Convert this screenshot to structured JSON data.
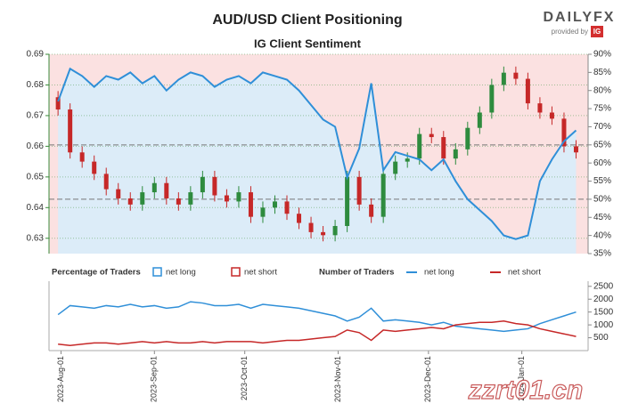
{
  "chart_data": [
    {
      "type": "candlestick",
      "title": "AUD/USD Client Positioning",
      "subtitle": "IG Client Sentiment",
      "logo": {
        "brand": "DAILYFX",
        "provided_by": "provided by",
        "provider": "IG"
      },
      "watermark": "zzrt01.cn",
      "x": [
        "2023-07-31",
        "2023-08-04",
        "2023-08-08",
        "2023-08-12",
        "2023-08-16",
        "2023-08-20",
        "2023-08-24",
        "2023-08-28",
        "2023-09-01",
        "2023-09-05",
        "2023-09-09",
        "2023-09-13",
        "2023-09-17",
        "2023-09-21",
        "2023-09-25",
        "2023-09-29",
        "2023-10-03",
        "2023-10-07",
        "2023-10-11",
        "2023-10-15",
        "2023-10-19",
        "2023-10-23",
        "2023-10-27",
        "2023-10-31",
        "2023-11-04",
        "2023-11-08",
        "2023-11-12",
        "2023-11-16",
        "2023-11-20",
        "2023-11-24",
        "2023-11-28",
        "2023-12-02",
        "2023-12-06",
        "2023-12-10",
        "2023-12-14",
        "2023-12-18",
        "2023-12-22",
        "2023-12-26",
        "2023-12-30",
        "2024-01-03",
        "2024-01-07",
        "2024-01-11",
        "2024-01-15",
        "2024-01-19"
      ],
      "open": [
        0.676,
        0.672,
        0.658,
        0.655,
        0.651,
        0.646,
        0.643,
        0.641,
        0.645,
        0.648,
        0.643,
        0.641,
        0.645,
        0.65,
        0.644,
        0.642,
        0.645,
        0.637,
        0.64,
        0.642,
        0.638,
        0.635,
        0.632,
        0.631,
        0.634,
        0.65,
        0.641,
        0.637,
        0.651,
        0.655,
        0.656,
        0.664,
        0.663,
        0.656,
        0.659,
        0.666,
        0.671,
        0.68,
        0.684,
        0.682,
        0.674,
        0.671,
        0.669,
        0.66
      ],
      "high": [
        0.678,
        0.674,
        0.66,
        0.657,
        0.653,
        0.648,
        0.645,
        0.647,
        0.65,
        0.65,
        0.645,
        0.647,
        0.652,
        0.652,
        0.646,
        0.647,
        0.647,
        0.642,
        0.644,
        0.644,
        0.64,
        0.637,
        0.634,
        0.636,
        0.652,
        0.652,
        0.643,
        0.653,
        0.657,
        0.658,
        0.666,
        0.666,
        0.665,
        0.661,
        0.668,
        0.673,
        0.682,
        0.686,
        0.686,
        0.684,
        0.676,
        0.673,
        0.671,
        0.662
      ],
      "low": [
        0.67,
        0.656,
        0.653,
        0.649,
        0.644,
        0.641,
        0.639,
        0.639,
        0.643,
        0.641,
        0.639,
        0.639,
        0.643,
        0.642,
        0.64,
        0.64,
        0.635,
        0.635,
        0.638,
        0.636,
        0.633,
        0.63,
        0.629,
        0.629,
        0.632,
        0.639,
        0.635,
        0.635,
        0.649,
        0.653,
        0.654,
        0.661,
        0.654,
        0.654,
        0.657,
        0.664,
        0.669,
        0.678,
        0.68,
        0.672,
        0.669,
        0.667,
        0.658,
        0.656
      ],
      "close": [
        0.672,
        0.658,
        0.655,
        0.651,
        0.646,
        0.643,
        0.641,
        0.645,
        0.648,
        0.643,
        0.641,
        0.645,
        0.65,
        0.644,
        0.642,
        0.645,
        0.637,
        0.64,
        0.642,
        0.638,
        0.635,
        0.632,
        0.631,
        0.634,
        0.65,
        0.641,
        0.637,
        0.651,
        0.655,
        0.656,
        0.664,
        0.663,
        0.656,
        0.659,
        0.666,
        0.671,
        0.68,
        0.684,
        0.682,
        0.674,
        0.671,
        0.669,
        0.66,
        0.658
      ],
      "up_color": "#2e8b3e",
      "down_color": "#c62828",
      "xlim": [
        "2023-07-28",
        "2024-01-23"
      ],
      "xticks": [
        {
          "value": "2023-08-01",
          "label": "2023-Aug-01"
        },
        {
          "value": "2023-09-01",
          "label": "2023-Sep-01"
        },
        {
          "value": "2023-10-01",
          "label": "2023-Oct-01"
        },
        {
          "value": "2023-11-01",
          "label": "2023-Nov-01"
        },
        {
          "value": "2023-12-01",
          "label": "2023-Dec-01"
        },
        {
          "value": "2024-01-01",
          "label": "2024-Jan-01"
        }
      ],
      "ylim": [
        0.625,
        0.69
      ],
      "yticks": [
        0.63,
        0.64,
        0.65,
        0.66,
        0.67,
        0.68,
        0.69
      ],
      "series": [
        {
          "name": "net long",
          "color": "#2f8fd8",
          "fill": "#dcecf8",
          "axis": "y2",
          "values": [
            77,
            86,
            84,
            81,
            84,
            83,
            85,
            82,
            84,
            80,
            83,
            85,
            84,
            81,
            83,
            84,
            82,
            85,
            84,
            83,
            80,
            76,
            72,
            70,
            56,
            64,
            82,
            58,
            63,
            62,
            61,
            58,
            61,
            55,
            50,
            47,
            44,
            40,
            39,
            40,
            55,
            61,
            66,
            69
          ]
        }
      ],
      "background": "#fbe1e1",
      "reference_lines": [
        65,
        50
      ],
      "y2lim": [
        35,
        90
      ],
      "y2ticks": [
        {
          "value": 35,
          "label": "35%"
        },
        {
          "value": 40,
          "label": "40%"
        },
        {
          "value": 45,
          "label": "45%"
        },
        {
          "value": 50,
          "label": "50%"
        },
        {
          "value": 55,
          "label": "55%"
        },
        {
          "value": 60,
          "label": "60%"
        },
        {
          "value": 65,
          "label": "65%"
        },
        {
          "value": 70,
          "label": "70%"
        },
        {
          "value": 75,
          "label": "75%"
        },
        {
          "value": 80,
          "label": "80%"
        },
        {
          "value": 85,
          "label": "85%"
        },
        {
          "value": 90,
          "label": "90%"
        }
      ]
    },
    {
      "type": "line",
      "legend_title": "Number of Traders",
      "percent_legend": {
        "title": "Percentage of Traders",
        "items": [
          {
            "name": "net long",
            "color": "#2f8fd8"
          },
          {
            "name": "net short",
            "color": "#c62828"
          }
        ]
      },
      "ylim": [
        0,
        2700
      ],
      "yticks": [
        500,
        1000,
        1500,
        2000,
        2500
      ],
      "series": [
        {
          "name": "net long",
          "color": "#2f8fd8",
          "values": [
            1400,
            1750,
            1700,
            1650,
            1750,
            1700,
            1800,
            1700,
            1750,
            1650,
            1700,
            1900,
            1850,
            1750,
            1750,
            1800,
            1650,
            1800,
            1750,
            1700,
            1650,
            1550,
            1450,
            1350,
            1150,
            1300,
            1650,
            1150,
            1200,
            1150,
            1100,
            1000,
            1100,
            950,
            900,
            850,
            800,
            750,
            800,
            850,
            1050,
            1200,
            1350,
            1500
          ]
        },
        {
          "name": "net short",
          "color": "#c62828",
          "values": [
            250,
            200,
            250,
            300,
            300,
            250,
            300,
            350,
            300,
            350,
            300,
            300,
            350,
            300,
            350,
            350,
            350,
            300,
            350,
            400,
            400,
            450,
            500,
            550,
            800,
            700,
            400,
            800,
            750,
            800,
            850,
            900,
            850,
            1000,
            1050,
            1100,
            1100,
            1150,
            1050,
            1000,
            850,
            750,
            650,
            550
          ]
        }
      ]
    }
  ]
}
